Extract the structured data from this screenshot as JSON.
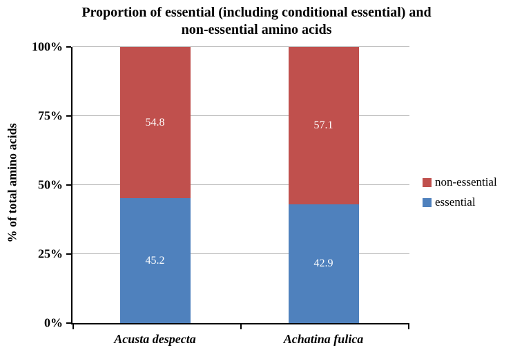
{
  "title": {
    "lines": [
      "Proportion of essential (including conditional essential) and",
      "non-essential amino acids"
    ]
  },
  "chart_data": {
    "type": "bar",
    "stacked": true,
    "title": "Proportion of essential (including conditional essential) and non-essential amino acids",
    "categories": [
      "Acusta despecta",
      "Achatina fulica"
    ],
    "series": [
      {
        "name": "essential",
        "color": "#4F81BD",
        "values": [
          45.2,
          42.9
        ]
      },
      {
        "name": "non-essential",
        "color": "#C0504D",
        "values": [
          54.8,
          57.1
        ]
      }
    ],
    "xlabel": "",
    "ylabel": "% of total amino acids",
    "ylim": [
      0,
      100
    ],
    "yticks": [
      {
        "value": 0,
        "label": "0%"
      },
      {
        "value": 25,
        "label": "25%"
      },
      {
        "value": 50,
        "label": "50%"
      },
      {
        "value": 75,
        "label": "75%"
      },
      {
        "value": 100,
        "label": "100%"
      }
    ],
    "grid": true,
    "gridline_color": "#BFBFBF",
    "axis_color": "#000000",
    "data_label_color": "#FFFFFF",
    "category_centers_pct": [
      24.5,
      74.5
    ],
    "x_tick_positions_pct": [
      0,
      50,
      100
    ],
    "legend": {
      "position": "right",
      "items": [
        {
          "label": "non-essential",
          "color": "#C0504D"
        },
        {
          "label": "essential",
          "color": "#4F81BD"
        }
      ]
    }
  }
}
